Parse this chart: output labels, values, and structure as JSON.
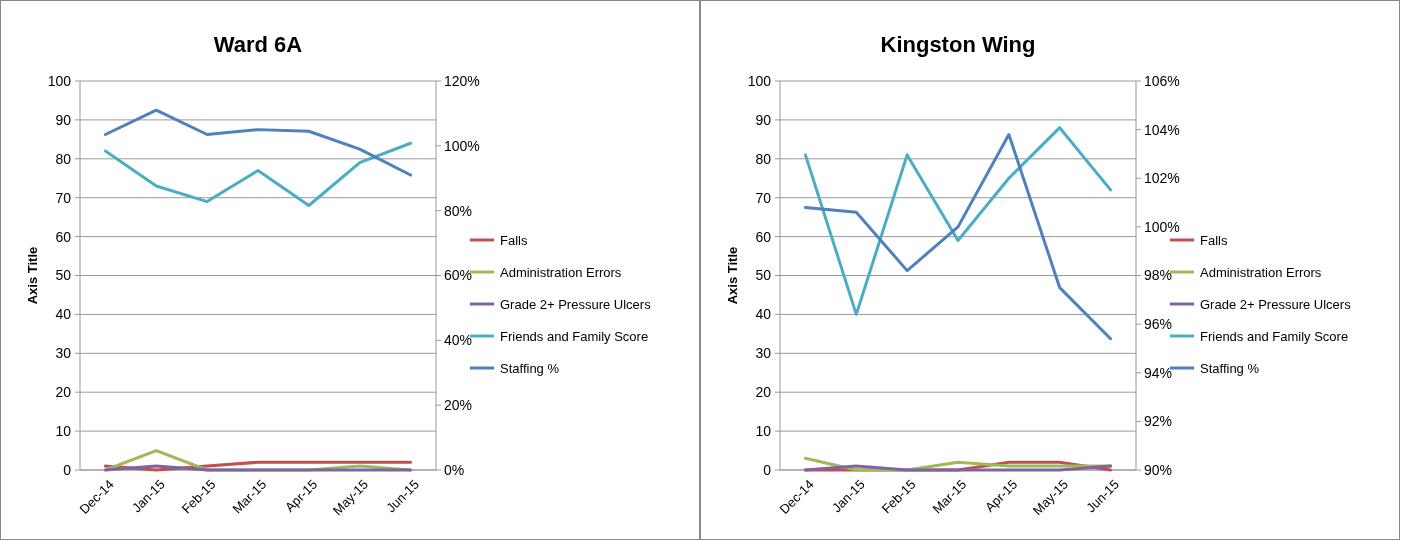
{
  "chart_data": [
    {
      "type": "line",
      "title": "Ward 6A",
      "ylabel": "Axis Title",
      "categories": [
        "Dec-14",
        "Jan-15",
        "Feb-15",
        "Mar-15",
        "Apr-15",
        "May-15",
        "Jun-15"
      ],
      "ylim": [
        0,
        100
      ],
      "yticks": [
        0,
        10,
        20,
        30,
        40,
        50,
        60,
        70,
        80,
        90,
        100
      ],
      "y2lim": [
        0,
        120
      ],
      "y2ticks": [
        {
          "value": 0,
          "label": "0%"
        },
        {
          "value": 20,
          "label": "20%"
        },
        {
          "value": 40,
          "label": "40%"
        },
        {
          "value": 60,
          "label": "60%"
        },
        {
          "value": 80,
          "label": "80%"
        },
        {
          "value": 100,
          "label": "100%"
        },
        {
          "value": 120,
          "label": "120%"
        }
      ],
      "grid": "y",
      "legend": "right",
      "series": [
        {
          "name": "Falls",
          "color": "#c0504d",
          "values": [
            1,
            0,
            1,
            2,
            2,
            2,
            2
          ]
        },
        {
          "name": "Administration Errors",
          "color": "#9bbb59",
          "values": [
            0,
            5,
            0,
            0,
            0,
            1,
            0
          ]
        },
        {
          "name": "Grade 2+ Pressure Ulcers",
          "color": "#8064a2",
          "values": [
            0,
            1,
            0,
            0,
            0,
            0,
            0
          ]
        },
        {
          "name": "Friends and Family Score",
          "color": "#4bacc6",
          "values": [
            82,
            73,
            69,
            77,
            68,
            79,
            84
          ]
        },
        {
          "name": "Staffing %",
          "color": "#4f81bd",
          "axis": "y2",
          "values": [
            103.5,
            111,
            103.5,
            105,
            104.5,
            99,
            91
          ]
        }
      ]
    },
    {
      "type": "line",
      "title": "Kingston Wing",
      "ylabel": "Axis Title",
      "categories": [
        "Dec-14",
        "Jan-15",
        "Feb-15",
        "Mar-15",
        "Apr-15",
        "May-15",
        "Jun-15"
      ],
      "ylim": [
        0,
        100
      ],
      "yticks": [
        0,
        10,
        20,
        30,
        40,
        50,
        60,
        70,
        80,
        90,
        100
      ],
      "y2lim": [
        90,
        106
      ],
      "y2ticks": [
        {
          "value": 90,
          "label": "90%"
        },
        {
          "value": 92,
          "label": "92%"
        },
        {
          "value": 94,
          "label": "94%"
        },
        {
          "value": 96,
          "label": "96%"
        },
        {
          "value": 98,
          "label": "98%"
        },
        {
          "value": 100,
          "label": "100%"
        },
        {
          "value": 102,
          "label": "102%"
        },
        {
          "value": 104,
          "label": "104%"
        },
        {
          "value": 106,
          "label": "106%"
        }
      ],
      "grid": "y",
      "legend": "right",
      "series": [
        {
          "name": "Falls",
          "color": "#c0504d",
          "values": [
            0,
            0,
            0,
            0,
            2,
            2,
            0
          ]
        },
        {
          "name": "Administration Errors",
          "color": "#9bbb59",
          "values": [
            3,
            0,
            0,
            2,
            1,
            1,
            1
          ]
        },
        {
          "name": "Grade 2+ Pressure Ulcers",
          "color": "#8064a2",
          "values": [
            0,
            1,
            0,
            0,
            0,
            0,
            1
          ]
        },
        {
          "name": "Friends and Family Score",
          "color": "#4bacc6",
          "values": [
            81,
            40,
            81,
            59,
            75,
            88,
            72
          ]
        },
        {
          "name": "Staffing %",
          "color": "#4f81bd",
          "axis": "y2",
          "values": [
            100.8,
            100.6,
            98.2,
            100,
            103.8,
            97.5,
            95.4
          ]
        }
      ]
    }
  ]
}
